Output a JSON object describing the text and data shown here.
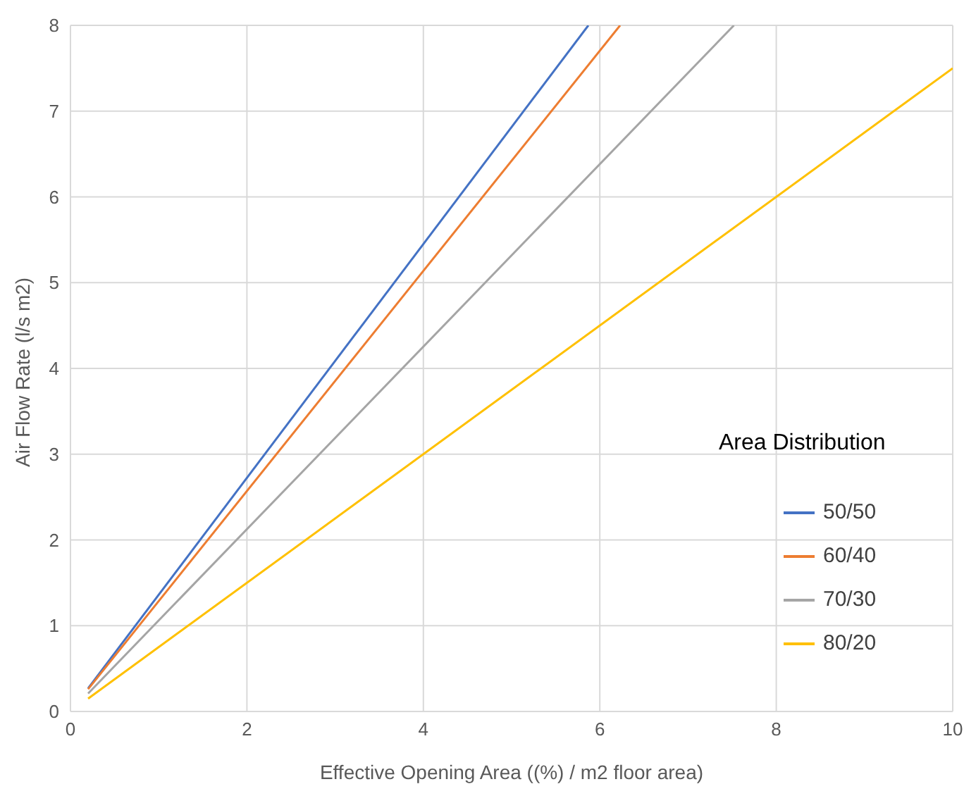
{
  "chart_data": {
    "type": "line",
    "xlabel": "Effective Opening Area ((%) / m2 floor area)",
    "ylabel": "Air Flow Rate (l/s m2)",
    "legend_title": "Area Distribution",
    "xlim": [
      0,
      10
    ],
    "xticks": [
      0,
      2,
      4,
      6,
      8,
      10
    ],
    "ylim": [
      0,
      8
    ],
    "yticks": [
      0,
      1,
      2,
      3,
      4,
      5,
      6,
      7,
      8
    ],
    "grid": true,
    "legend": "right",
    "marker": "none",
    "line_style": "solid",
    "series": [
      {
        "name": "50/50",
        "color": "#4472c4",
        "x": [
          0.2,
          5.87
        ],
        "values": [
          0.27,
          8
        ]
      },
      {
        "name": "60/40",
        "color": "#ed7d31",
        "x": [
          0.2,
          6.23
        ],
        "values": [
          0.26,
          8
        ]
      },
      {
        "name": "70/30",
        "color": "#a5a5a5",
        "x": [
          0.2,
          7.52
        ],
        "values": [
          0.21,
          8
        ]
      },
      {
        "name": "80/20",
        "color": "#ffc000",
        "x": [
          0.2,
          10
        ],
        "values": [
          0.15,
          7.5
        ]
      }
    ]
  }
}
